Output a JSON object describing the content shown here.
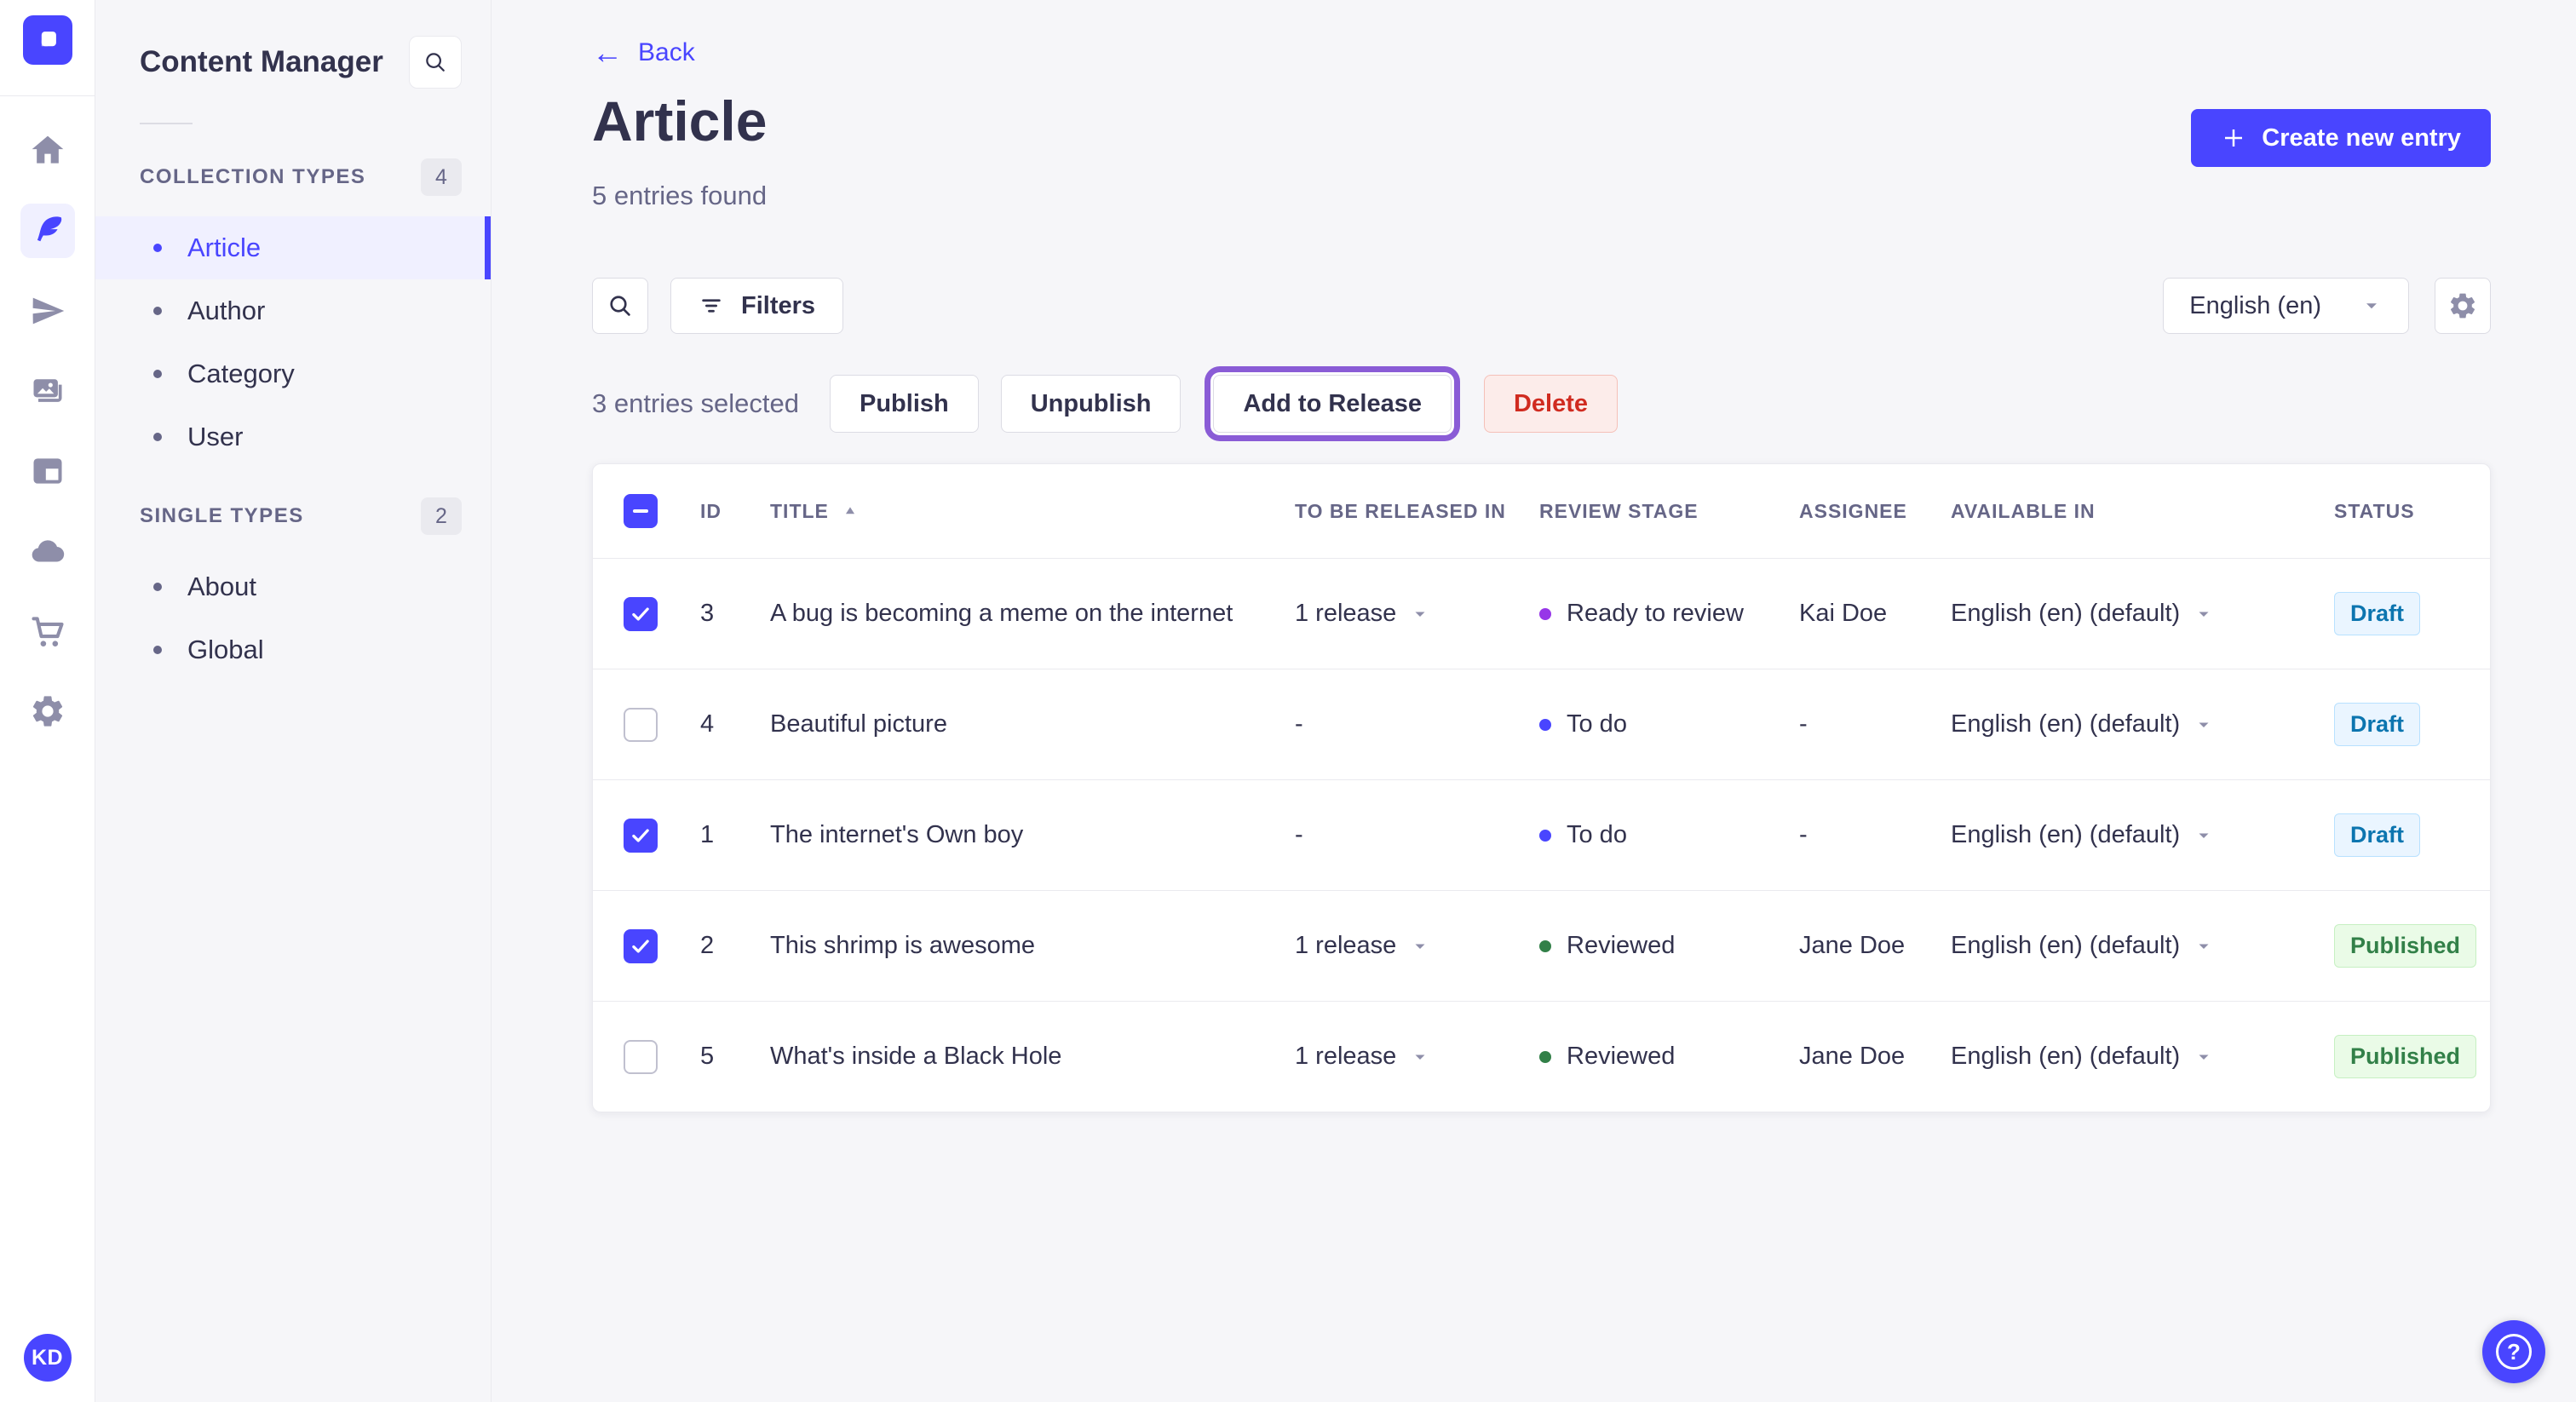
{
  "nav_rail": {
    "icons": [
      "home-icon",
      "content-manager-icon",
      "releases-icon",
      "media-library-icon",
      "marketplace-icon",
      "deploy-icon",
      "purchases-icon",
      "settings-icon"
    ],
    "active_icon": "content-manager-icon",
    "avatar_initials": "KD"
  },
  "sidebar": {
    "title": "Content Manager",
    "sections": [
      {
        "label": "COLLECTION TYPES",
        "count": "4",
        "items": [
          {
            "label": "Article",
            "active": true
          },
          {
            "label": "Author",
            "active": false
          },
          {
            "label": "Category",
            "active": false
          },
          {
            "label": "User",
            "active": false
          }
        ]
      },
      {
        "label": "SINGLE TYPES",
        "count": "2",
        "items": [
          {
            "label": "About",
            "active": false
          },
          {
            "label": "Global",
            "active": false
          }
        ]
      }
    ]
  },
  "header": {
    "back_label": "Back",
    "title": "Article",
    "subtitle": "5 entries found",
    "create_button": "Create new entry"
  },
  "toolbar": {
    "filters_label": "Filters",
    "locale_value": "English (en)"
  },
  "selection_bar": {
    "selected_text": "3 entries selected",
    "publish": "Publish",
    "unpublish": "Unpublish",
    "add_to_release": "Add to Release",
    "delete": "Delete"
  },
  "table": {
    "headers": [
      "ID",
      "TITLE",
      "TO BE RELEASED IN",
      "REVIEW STAGE",
      "ASSIGNEE",
      "AVAILABLE IN",
      "STATUS"
    ],
    "sorted_column": "TITLE",
    "sort_direction": "asc",
    "rows": [
      {
        "checked": true,
        "id": "3",
        "title": "A bug is becoming a meme on the internet",
        "release": "1 release",
        "stage": "Ready to review",
        "stage_color": "stage_ready",
        "assignee": "Kai Doe",
        "locale": "English (en) (default)",
        "status": "Draft"
      },
      {
        "checked": false,
        "id": "4",
        "title": "Beautiful picture",
        "release": "-",
        "stage": "To do",
        "stage_color": "stage_todo",
        "assignee": "-",
        "locale": "English (en) (default)",
        "status": "Draft"
      },
      {
        "checked": true,
        "id": "1",
        "title": "The internet's Own boy",
        "release": "-",
        "stage": "To do",
        "stage_color": "stage_todo",
        "assignee": "-",
        "locale": "English (en) (default)",
        "status": "Draft"
      },
      {
        "checked": true,
        "id": "2",
        "title": "This shrimp is awesome",
        "release": "1 release",
        "stage": "Reviewed",
        "stage_color": "stage_reviewed",
        "assignee": "Jane Doe",
        "locale": "English (en) (default)",
        "status": "Published"
      },
      {
        "checked": false,
        "id": "5",
        "title": "What's inside a Black Hole",
        "release": "1 release",
        "stage": "Reviewed",
        "stage_color": "stage_reviewed",
        "assignee": "Jane Doe",
        "locale": "English (en) (default)",
        "status": "Published"
      }
    ]
  },
  "help_label": "?",
  "colors": {
    "primary": "#4945ff",
    "primary_light_bg": "#f0f0ff",
    "text_dark": "#32324d",
    "text_muted": "#666687",
    "icon_gray": "#8e8ea9",
    "release_focus_ring": "#8a5cd6",
    "danger_text": "#d02b20",
    "danger_bg": "#fcecea",
    "draft_text": "#0c75af",
    "draft_bg": "#eaf5ff",
    "published_text": "#328048",
    "published_bg": "#eafbe7",
    "stage_todo": "#4945ff",
    "stage_ready": "#9736e8",
    "stage_reviewed": "#328048"
  }
}
